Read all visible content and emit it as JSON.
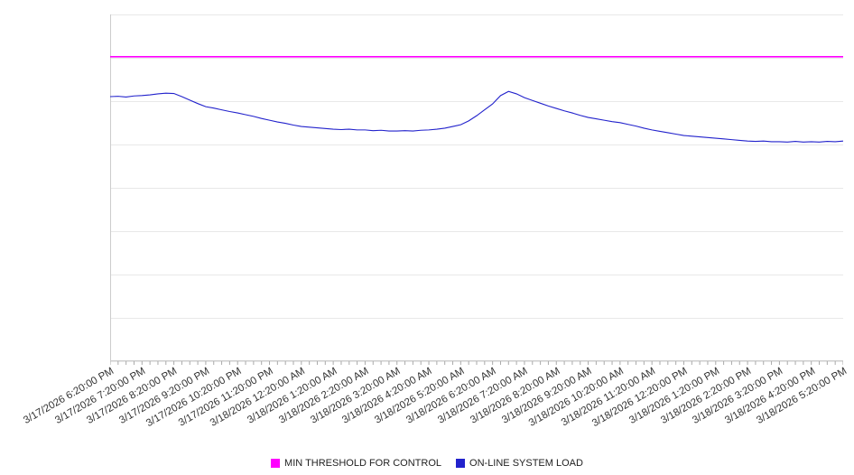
{
  "chart_data": {
    "type": "line",
    "title": "",
    "xlabel": "",
    "ylabel": "",
    "ylim": [
      0,
      100
    ],
    "grid_divisions": 8,
    "legend_position": "bottom",
    "x_labels": [
      "3/17/2026 6:20:00 PM",
      "3/17/2026 7:20:00 PM",
      "3/17/2026 8:20:00 PM",
      "3/17/2026 9:20:00 PM",
      "3/17/2026 10:20:00 PM",
      "3/17/2026 11:20:00 PM",
      "3/18/2026 12:20:00 AM",
      "3/18/2026 1:20:00 AM",
      "3/18/2026 2:20:00 AM",
      "3/18/2026 3:20:00 AM",
      "3/18/2026 4:20:00 AM",
      "3/18/2026 5:20:00 AM",
      "3/18/2026 6:20:00 AM",
      "3/18/2026 7:20:00 AM",
      "3/18/2026 8:20:00 AM",
      "3/18/2026 9:20:00 AM",
      "3/18/2026 10:20:00 AM",
      "3/18/2026 11:20:00 AM",
      "3/18/2026 12:20:00 PM",
      "3/18/2026 1:20:00 PM",
      "3/18/2026 2:20:00 PM",
      "3/18/2026 3:20:00 PM",
      "3/18/2026 4:20:00 PM",
      "3/18/2026 5:20:00 PM"
    ],
    "series": [
      {
        "name": "MIN THRESHOLD FOR CONTROL",
        "type": "constant",
        "value": 87.8,
        "color": "#ff00ff"
      },
      {
        "name": "ON-LINE SYSTEM LOAD",
        "type": "line",
        "color": "#2222cc",
        "values": [
          76.3,
          76.4,
          76.2,
          76.5,
          76.6,
          76.8,
          77.1,
          77.3,
          77.2,
          76.3,
          75.3,
          74.3,
          73.4,
          73.0,
          72.5,
          72.0,
          71.6,
          71.1,
          70.6,
          70.0,
          69.5,
          69.0,
          68.6,
          68.1,
          67.7,
          67.5,
          67.3,
          67.1,
          66.9,
          66.8,
          66.9,
          66.7,
          66.7,
          66.5,
          66.6,
          66.4,
          66.4,
          66.5,
          66.4,
          66.6,
          66.7,
          66.9,
          67.2,
          67.7,
          68.2,
          69.3,
          70.8,
          72.5,
          74.2,
          76.6,
          77.8,
          77.1,
          76.0,
          75.2,
          74.4,
          73.6,
          72.9,
          72.2,
          71.6,
          70.9,
          70.3,
          69.9,
          69.5,
          69.1,
          68.8,
          68.3,
          67.8,
          67.2,
          66.7,
          66.3,
          65.9,
          65.5,
          65.1,
          64.9,
          64.7,
          64.5,
          64.3,
          64.1,
          63.9,
          63.7,
          63.5,
          63.4,
          63.5,
          63.3,
          63.3,
          63.2,
          63.4,
          63.2,
          63.3,
          63.2,
          63.4,
          63.3,
          63.5
        ]
      }
    ],
    "colors": {
      "grid": "#e8e8e8",
      "axis": "#cccccc",
      "tick": "#aaaaaa",
      "label_text": "#333333"
    }
  },
  "legend": {
    "items": [
      {
        "label": "MIN THRESHOLD FOR CONTROL",
        "color": "#ff00ff"
      },
      {
        "label": "ON-LINE SYSTEM LOAD",
        "color": "#2222cc"
      }
    ]
  }
}
